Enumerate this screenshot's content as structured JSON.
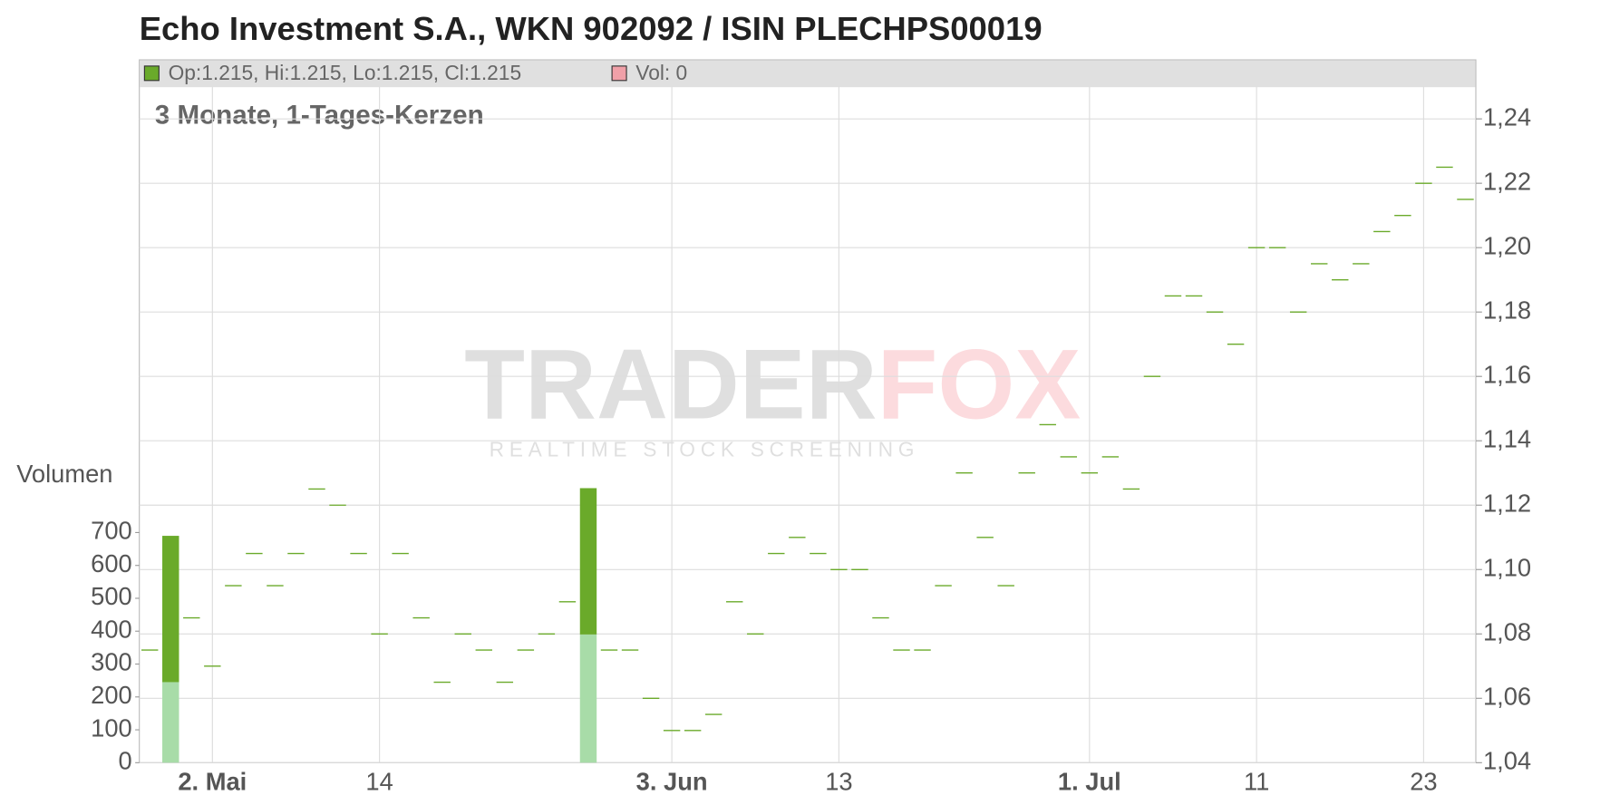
{
  "chart_data": {
    "type": "candlestick",
    "title": "Echo Investment S.A., WKN 902092 / ISIN PLECHPS00019",
    "subtitle": "3 Monate, 1-Tages-Kerzen",
    "legend": [
      {
        "label": "Op:1.215, Hi:1.215, Lo:1.215, Cl:1.215",
        "color": "#6aaa2a"
      },
      {
        "label": "Vol: 0",
        "color": "#f0a0a8"
      }
    ],
    "watermark": {
      "parts": [
        "TRADER",
        "FOX"
      ],
      "tagline": "REALTIME STOCK SCREENING"
    },
    "categories": [
      null,
      null,
      null,
      "2. Mai",
      null,
      null,
      null,
      null,
      null,
      null,
      null,
      "14",
      null,
      null,
      null,
      null,
      null,
      null,
      null,
      null,
      null,
      null,
      null,
      null,
      null,
      "3. Jun",
      null,
      null,
      null,
      null,
      null,
      null,
      null,
      "13",
      null,
      null,
      null,
      null,
      null,
      null,
      null,
      null,
      null,
      null,
      null,
      "1. Jul",
      null,
      null,
      null,
      null,
      null,
      null,
      null,
      "11",
      null,
      null,
      null,
      null,
      null,
      null,
      null,
      "23",
      null,
      null
    ],
    "values": [
      1.075,
      null,
      1.085,
      1.07,
      1.095,
      1.105,
      1.095,
      1.105,
      1.125,
      1.12,
      1.105,
      1.08,
      1.105,
      1.085,
      1.065,
      1.08,
      1.075,
      1.065,
      1.075,
      1.08,
      1.09,
      null,
      1.075,
      1.075,
      1.06,
      1.05,
      1.05,
      1.055,
      1.09,
      1.08,
      1.105,
      1.11,
      1.105,
      1.1,
      1.1,
      1.085,
      1.075,
      1.075,
      1.095,
      1.13,
      1.11,
      1.095,
      1.13,
      1.145,
      1.135,
      1.13,
      1.135,
      1.125,
      1.16,
      1.185,
      1.185,
      1.18,
      1.17,
      1.2,
      1.2,
      1.18,
      1.195,
      1.19,
      1.195,
      1.205,
      1.21,
      1.22,
      1.225,
      1.215
    ],
    "color": "#6aaa2a",
    "ylim": [
      1.04,
      1.25
    ],
    "yticks": [
      {
        "value": 1.04,
        "label": "1,04"
      },
      {
        "value": 1.06,
        "label": "1,06"
      },
      {
        "value": 1.08,
        "label": "1,08"
      },
      {
        "value": 1.1,
        "label": "1,10"
      },
      {
        "value": 1.12,
        "label": "1,12"
      },
      {
        "value": 1.14,
        "label": "1,14"
      },
      {
        "value": 1.16,
        "label": "1,16"
      },
      {
        "value": 1.18,
        "label": "1,18"
      },
      {
        "value": 1.2,
        "label": "1,20"
      },
      {
        "value": 1.22,
        "label": "1,22"
      },
      {
        "value": 1.24,
        "label": "1,24"
      }
    ],
    "grid": true,
    "volume": {
      "label": "Volumen",
      "ylim": [
        0,
        700
      ],
      "yticks": [
        0,
        100,
        200,
        300,
        400,
        500,
        600,
        700
      ],
      "segments": [
        {
          "color": "#a8dca8",
          "values": [
            0,
            245,
            0,
            0,
            0,
            0,
            0,
            0,
            0,
            0,
            0,
            0,
            0,
            0,
            0,
            0,
            0,
            0,
            0,
            0,
            0,
            390,
            0,
            0,
            0,
            0,
            0,
            0,
            0,
            0,
            0,
            0,
            0,
            0,
            0,
            0,
            0,
            0,
            0,
            0,
            0,
            0,
            0,
            0,
            0,
            0,
            0,
            0,
            0,
            0,
            0,
            0,
            0,
            0,
            0,
            0,
            0,
            0,
            0,
            0,
            0,
            0,
            0,
            0
          ]
        },
        {
          "color": "#6aaa2a",
          "values": [
            0,
            445,
            0,
            0,
            0,
            0,
            0,
            0,
            0,
            0,
            0,
            0,
            0,
            0,
            0,
            0,
            0,
            0,
            0,
            0,
            0,
            445,
            0,
            0,
            0,
            0,
            0,
            0,
            0,
            0,
            0,
            0,
            0,
            0,
            0,
            0,
            0,
            0,
            0,
            0,
            0,
            0,
            0,
            0,
            0,
            0,
            0,
            0,
            0,
            0,
            0,
            0,
            0,
            0,
            0,
            0,
            0,
            0,
            0,
            0,
            0,
            0,
            0,
            0
          ]
        }
      ]
    }
  }
}
